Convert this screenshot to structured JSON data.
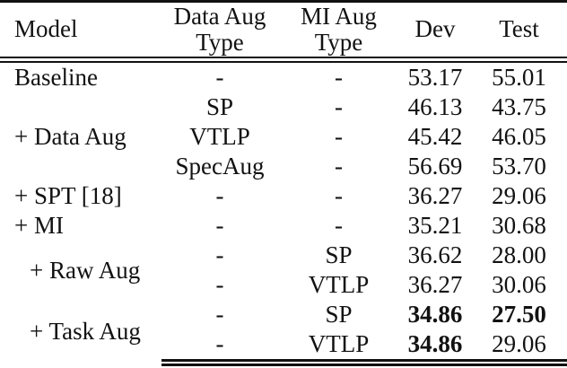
{
  "table": {
    "header": {
      "model": "Model",
      "data_aug_type": {
        "line1": "Data Aug",
        "line2": "Type"
      },
      "mi_aug_type": {
        "line1": "MI Aug",
        "line2": "Type"
      },
      "dev": "Dev",
      "test": "Test"
    },
    "rows": [
      {
        "model": "Baseline",
        "data_aug": "-",
        "mi_aug": "-",
        "dev": "53.17",
        "test": "55.01"
      },
      {
        "model": "+ Data Aug",
        "data_aug": "SP",
        "mi_aug": "-",
        "dev": "46.13",
        "test": "43.75"
      },
      {
        "data_aug": "VTLP",
        "mi_aug": "-",
        "dev": "45.42",
        "test": "46.05"
      },
      {
        "data_aug": "SpecAug",
        "mi_aug": "-",
        "dev": "56.69",
        "test": "53.70"
      },
      {
        "model": "+ SPT [18]",
        "data_aug": "-",
        "mi_aug": "-",
        "dev": "36.27",
        "test": "29.06"
      },
      {
        "model": "+ MI",
        "data_aug": "-",
        "mi_aug": "-",
        "dev": "35.21",
        "test": "30.68"
      },
      {
        "model": "+ Raw Aug",
        "data_aug": "-",
        "mi_aug": "SP",
        "dev": "36.62",
        "test": "28.00"
      },
      {
        "data_aug": "-",
        "mi_aug": "VTLP",
        "dev": "36.27",
        "test": "30.06"
      },
      {
        "model": "+ Task Aug",
        "data_aug": "-",
        "mi_aug": "SP",
        "dev": "34.86",
        "test": "27.50"
      },
      {
        "data_aug": "-",
        "mi_aug": "VTLP",
        "dev": "34.86",
        "test": "29.06"
      }
    ],
    "colors": {
      "text": "#121212",
      "rule": "#111111",
      "background": "#ffffff"
    }
  }
}
